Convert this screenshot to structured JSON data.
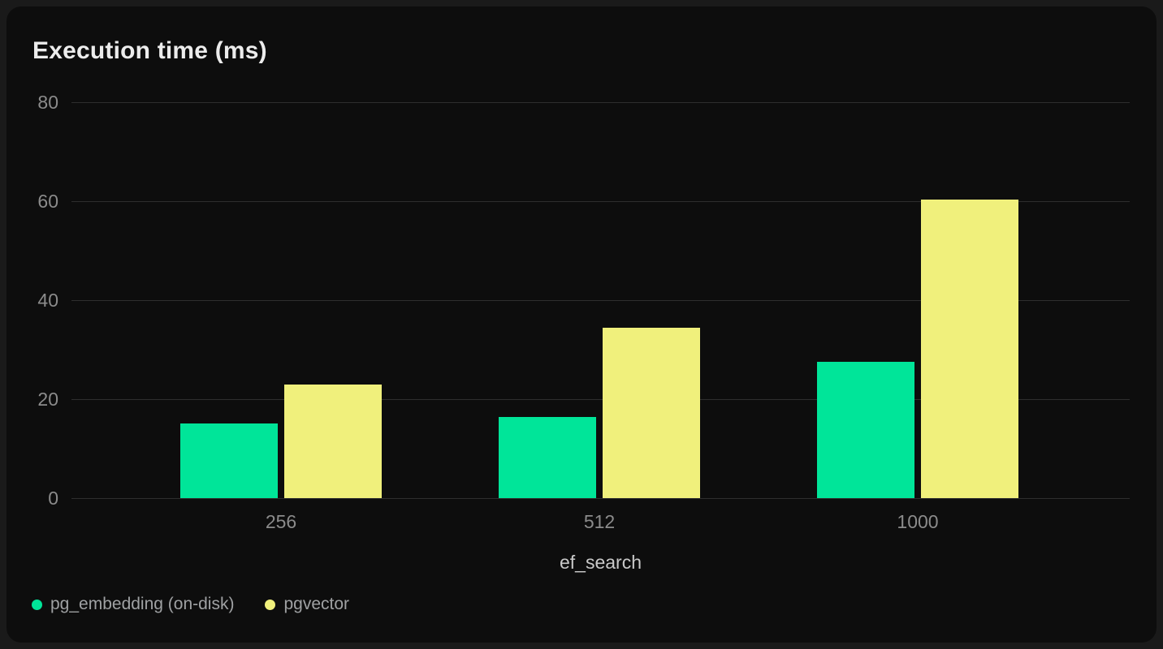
{
  "chart_data": {
    "type": "bar",
    "title": "Execution time (ms)",
    "xlabel": "ef_search",
    "ylabel": "",
    "categories": [
      "256",
      "512",
      "1000"
    ],
    "series": [
      {
        "name": "pg_embedding (on-disk)",
        "color": "#00e599",
        "values": [
          15.1,
          16.4,
          27.5
        ]
      },
      {
        "name": "pgvector",
        "color": "#f0f07c",
        "values": [
          23.0,
          34.5,
          60.4
        ]
      }
    ],
    "yticks": [
      0,
      20,
      40,
      60,
      80
    ],
    "ylim": [
      0,
      80
    ],
    "grid": true,
    "legend_position": "bottom-left"
  },
  "theme": {
    "page_bg": "#1a1a1a",
    "card_bg": "#0d0d0d",
    "grid_color": "#2e2e2e",
    "tick_color": "#8b8b8b",
    "title_color": "#ececec",
    "xlabel_color": "#c9c9c9",
    "legend_text_color": "#9fa1a3"
  }
}
